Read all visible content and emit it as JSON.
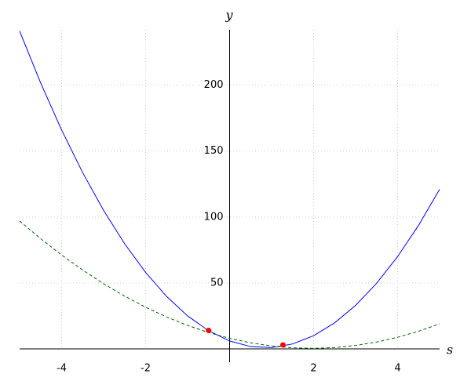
{
  "chart_data": {
    "type": "line",
    "x_label": "s",
    "y_label": "y",
    "x": [
      -5,
      -4.5,
      -4,
      -3.5,
      -3,
      -2.5,
      -2,
      -1.5,
      -1,
      -0.5,
      0,
      0.5,
      1,
      1.5,
      2,
      2.5,
      3,
      3.5,
      4,
      4.5,
      5
    ],
    "series": [
      {
        "color": "#0000ff",
        "dash": false,
        "values": [
          241,
          201.75,
          166,
          133.75,
          105,
          79.75,
          58,
          39.75,
          25,
          13.75,
          6,
          1.75,
          1,
          3.75,
          10,
          19.75,
          33,
          49.75,
          70,
          93.75,
          121
        ]
      },
      {
        "color": "#006400",
        "dash": true,
        "values": [
          97,
          83.6,
          71.2,
          59.8,
          49.4,
          40,
          31.6,
          24.2,
          17.8,
          12.4,
          8,
          4.6,
          2.2,
          0.8,
          0.4,
          1,
          2.6,
          5.2,
          8.8,
          13.4,
          19
        ]
      }
    ],
    "points": {
      "color": "#ff0000",
      "x": [
        -0.5,
        1.27
      ],
      "values": [
        14,
        3
      ]
    },
    "xlim": [
      -5,
      5
    ],
    "ylim": [
      0,
      242
    ],
    "xticks": [
      -4,
      -2,
      2,
      4
    ],
    "yticks": [
      50,
      100,
      150,
      200
    ],
    "grid": true
  }
}
